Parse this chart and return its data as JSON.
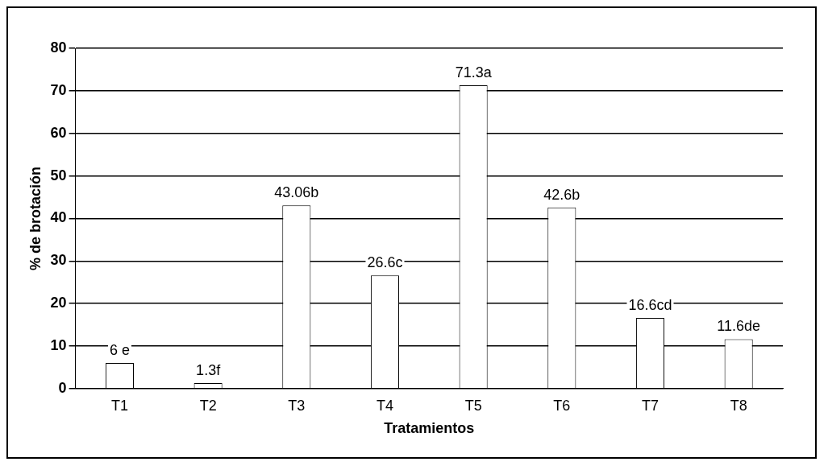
{
  "chart_data": {
    "type": "bar",
    "xlabel": "Tratamientos",
    "ylabel": "% de brotación",
    "categories": [
      "T1",
      "T2",
      "T3",
      "T4",
      "T5",
      "T6",
      "T7",
      "T8"
    ],
    "values": [
      6,
      1.3,
      43.06,
      26.6,
      71.3,
      42.6,
      16.6,
      11.6
    ],
    "value_labels": [
      "6 e",
      "1.3f",
      "43.06b",
      "26.6c",
      "71.3a",
      "42.6b",
      "16.6cd",
      "11.6de"
    ],
    "color": "#ffffff",
    "ylim": [
      0,
      80
    ],
    "yticks": [
      0,
      10,
      20,
      30,
      40,
      50,
      60,
      70,
      80
    ],
    "grid": "y"
  }
}
